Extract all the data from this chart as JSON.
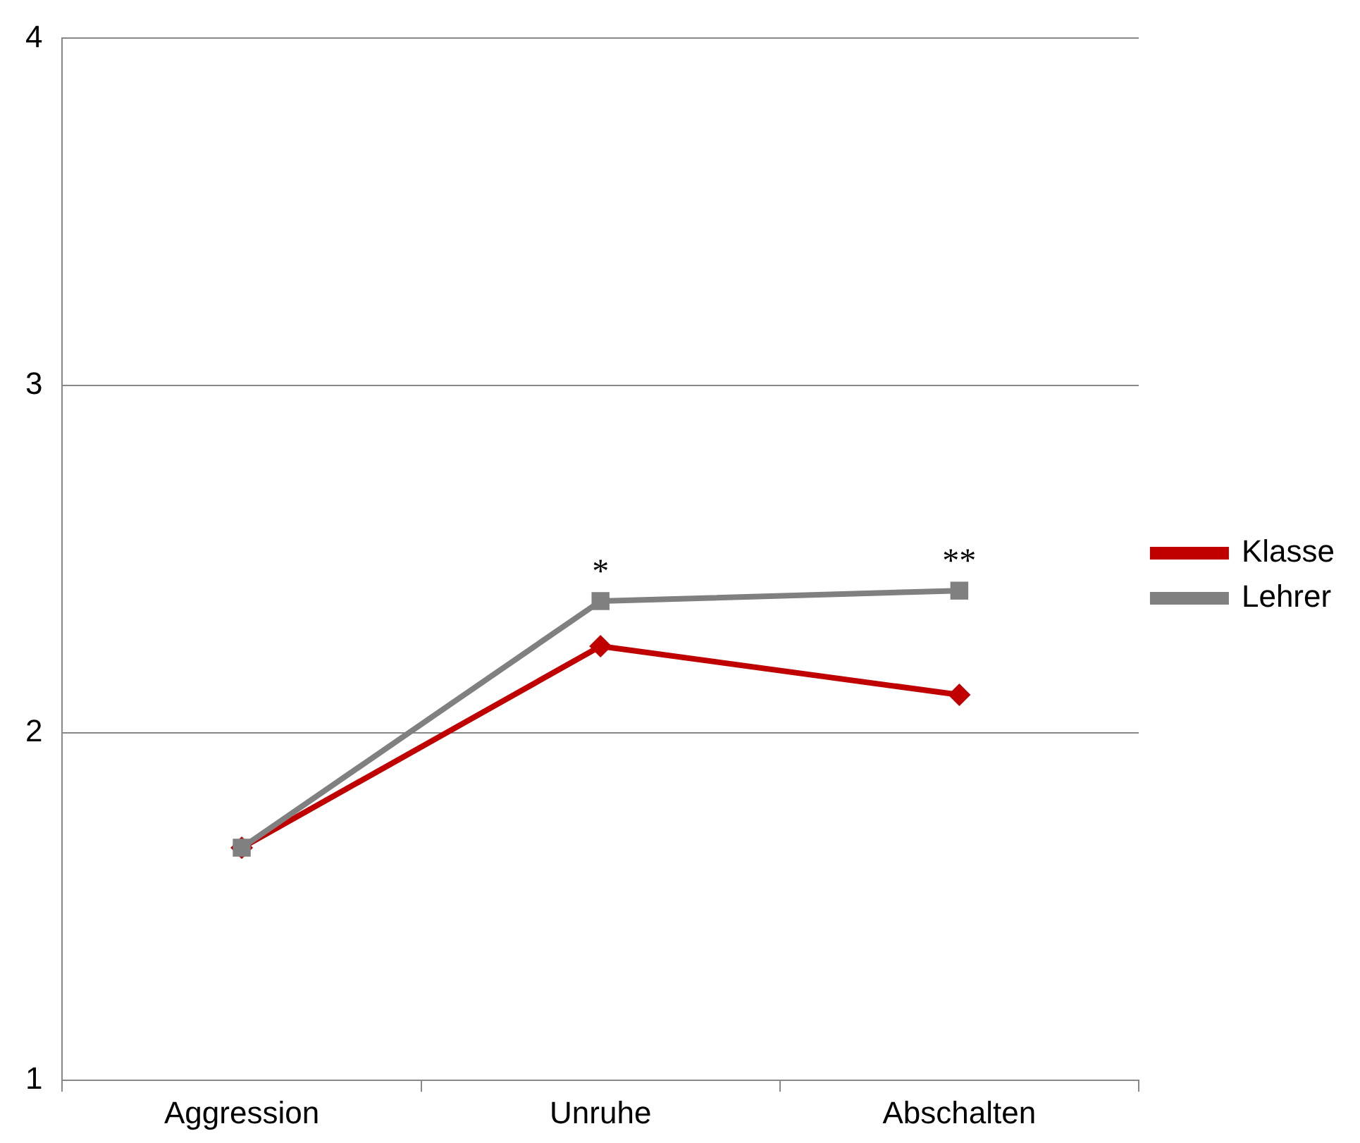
{
  "chart_data": {
    "type": "line",
    "categories": [
      "Aggression",
      "Unruhe",
      "Abschalten"
    ],
    "series": [
      {
        "name": "Klasse",
        "color": "#c00000",
        "values": [
          1.67,
          2.25,
          2.11
        ],
        "marker": "diamond"
      },
      {
        "name": "Lehrer",
        "color": "#808080",
        "values": [
          1.67,
          2.38,
          2.41
        ],
        "marker": "square"
      }
    ],
    "ylim": [
      1,
      4
    ],
    "yticks": [
      1,
      2,
      3,
      4
    ],
    "grid": "y",
    "legend": "right",
    "annotations": [
      {
        "text": "*",
        "x": "Unruhe",
        "y": 2.38
      },
      {
        "text": "**",
        "x": "Abschalten",
        "y": 2.41
      }
    ]
  }
}
